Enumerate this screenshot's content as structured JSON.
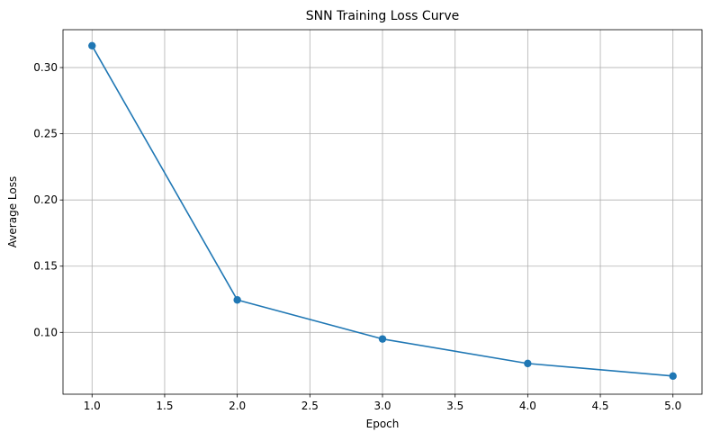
{
  "chart_data": {
    "type": "line",
    "title": "SNN Training Loss Curve",
    "xlabel": "Epoch",
    "ylabel": "Average Loss",
    "x": [
      1.0,
      2.0,
      3.0,
      4.0,
      5.0
    ],
    "series": [
      {
        "values": [
          0.3165,
          0.1245,
          0.095,
          0.0765,
          0.067
        ],
        "color": "#1f77b4",
        "marker": "circle"
      }
    ],
    "xlim": [
      0.8,
      5.2
    ],
    "ylim": [
      0.0533,
      0.3286
    ],
    "xticks": [
      1.0,
      1.5,
      2.0,
      2.5,
      3.0,
      3.5,
      4.0,
      4.5,
      5.0
    ],
    "xtick_labels": [
      "1.0",
      "1.5",
      "2.0",
      "2.5",
      "3.0",
      "3.5",
      "4.0",
      "4.5",
      "5.0"
    ],
    "yticks": [
      0.1,
      0.15,
      0.2,
      0.25,
      0.3
    ],
    "ytick_labels": [
      "0.10",
      "0.15",
      "0.20",
      "0.25",
      "0.30"
    ],
    "grid": true,
    "legend": "none"
  }
}
